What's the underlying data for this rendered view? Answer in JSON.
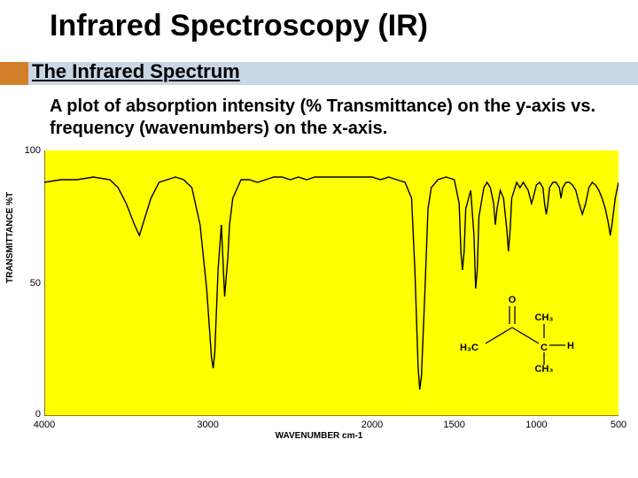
{
  "title": "Infrared Spectroscopy (IR)",
  "subheading": "The Infrared Spectrum",
  "body": "A plot of absorption intensity (% Transmittance) on the y-axis vs. frequency (wavenumbers) on the x-axis.",
  "accent_color": "#d37f2a",
  "subbar_color": "#c9d6e4",
  "chart": {
    "type": "line",
    "background_color": "#ffff00",
    "line_color": "#000000",
    "line_width": 1.4,
    "ylabel": "TRANSMITTANCE %T",
    "xlabel": "WAVENUMBER cm-1",
    "ylim": [
      0,
      100
    ],
    "yticks": [
      0,
      50,
      100
    ],
    "xlim": [
      4000,
      500
    ],
    "xticks": [
      4000,
      3000,
      2000,
      1500,
      1000,
      500
    ],
    "xtick_positions_pct": [
      0,
      28.5,
      57.1,
      71.4,
      85.7,
      100
    ],
    "series": [
      [
        4000,
        88
      ],
      [
        3900,
        89
      ],
      [
        3800,
        89
      ],
      [
        3700,
        90
      ],
      [
        3600,
        89
      ],
      [
        3550,
        86
      ],
      [
        3500,
        80
      ],
      [
        3450,
        72
      ],
      [
        3420,
        68
      ],
      [
        3400,
        72
      ],
      [
        3350,
        82
      ],
      [
        3300,
        88
      ],
      [
        3250,
        89
      ],
      [
        3200,
        90
      ],
      [
        3150,
        89
      ],
      [
        3100,
        86
      ],
      [
        3050,
        72
      ],
      [
        3010,
        48
      ],
      [
        2980,
        22
      ],
      [
        2970,
        18
      ],
      [
        2960,
        24
      ],
      [
        2940,
        55
      ],
      [
        2920,
        72
      ],
      [
        2900,
        45
      ],
      [
        2880,
        60
      ],
      [
        2870,
        72
      ],
      [
        2850,
        82
      ],
      [
        2800,
        89
      ],
      [
        2750,
        89
      ],
      [
        2700,
        88
      ],
      [
        2650,
        89
      ],
      [
        2600,
        90
      ],
      [
        2550,
        90
      ],
      [
        2500,
        89
      ],
      [
        2450,
        90
      ],
      [
        2400,
        89
      ],
      [
        2350,
        90
      ],
      [
        2300,
        90
      ],
      [
        2250,
        90
      ],
      [
        2200,
        90
      ],
      [
        2150,
        90
      ],
      [
        2100,
        90
      ],
      [
        2050,
        90
      ],
      [
        2000,
        90
      ],
      [
        1950,
        89
      ],
      [
        1900,
        90
      ],
      [
        1850,
        89
      ],
      [
        1800,
        88
      ],
      [
        1760,
        82
      ],
      [
        1740,
        55
      ],
      [
        1720,
        18
      ],
      [
        1710,
        10
      ],
      [
        1700,
        15
      ],
      [
        1680,
        45
      ],
      [
        1660,
        78
      ],
      [
        1640,
        86
      ],
      [
        1600,
        89
      ],
      [
        1550,
        90
      ],
      [
        1500,
        89
      ],
      [
        1470,
        80
      ],
      [
        1460,
        62
      ],
      [
        1450,
        55
      ],
      [
        1440,
        62
      ],
      [
        1430,
        78
      ],
      [
        1400,
        85
      ],
      [
        1380,
        68
      ],
      [
        1370,
        48
      ],
      [
        1360,
        55
      ],
      [
        1350,
        75
      ],
      [
        1320,
        86
      ],
      [
        1300,
        88
      ],
      [
        1280,
        86
      ],
      [
        1260,
        80
      ],
      [
        1250,
        72
      ],
      [
        1240,
        78
      ],
      [
        1220,
        85
      ],
      [
        1200,
        82
      ],
      [
        1180,
        70
      ],
      [
        1170,
        62
      ],
      [
        1160,
        70
      ],
      [
        1150,
        82
      ],
      [
        1120,
        88
      ],
      [
        1100,
        86
      ],
      [
        1080,
        88
      ],
      [
        1050,
        85
      ],
      [
        1030,
        80
      ],
      [
        1020,
        82
      ],
      [
        1000,
        87
      ],
      [
        980,
        88
      ],
      [
        960,
        86
      ],
      [
        950,
        80
      ],
      [
        940,
        76
      ],
      [
        930,
        80
      ],
      [
        920,
        86
      ],
      [
        900,
        88
      ],
      [
        880,
        88
      ],
      [
        860,
        86
      ],
      [
        850,
        82
      ],
      [
        840,
        86
      ],
      [
        820,
        88
      ],
      [
        800,
        88
      ],
      [
        780,
        87
      ],
      [
        760,
        85
      ],
      [
        740,
        80
      ],
      [
        720,
        76
      ],
      [
        700,
        80
      ],
      [
        680,
        86
      ],
      [
        660,
        88
      ],
      [
        640,
        87
      ],
      [
        620,
        85
      ],
      [
        600,
        82
      ],
      [
        580,
        78
      ],
      [
        560,
        72
      ],
      [
        550,
        68
      ],
      [
        540,
        72
      ],
      [
        520,
        82
      ],
      [
        500,
        88
      ]
    ]
  },
  "molecule": {
    "labels": {
      "o": "O",
      "ch3_left": "H₃C",
      "ch3_right": "CH₃",
      "c": "C",
      "h": "H"
    },
    "bond_color": "#000000",
    "font_size": 11
  }
}
